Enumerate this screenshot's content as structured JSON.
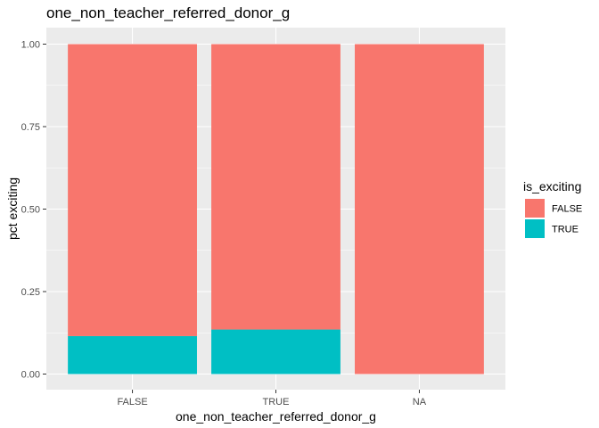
{
  "chart_data": {
    "type": "bar",
    "stacked": true,
    "title": "one_non_teacher_referred_donor_g",
    "xlabel": "one_non_teacher_referred_donor_g",
    "ylabel": "pct exciting",
    "categories": [
      "FALSE",
      "TRUE",
      "NA"
    ],
    "ylim": [
      0,
      1
    ],
    "yticks": [
      0,
      0.25,
      0.5,
      0.75,
      1
    ],
    "ytick_labels": [
      "0.00",
      "0.25",
      "0.50",
      "0.75",
      "1.00"
    ],
    "grid": true,
    "legend": {
      "title": "is_exciting",
      "placement": "right"
    },
    "series": [
      {
        "name": "FALSE",
        "color": "#F8766D",
        "values": [
          0.885,
          0.865,
          1.0
        ]
      },
      {
        "name": "TRUE",
        "color": "#00BFC4",
        "values": [
          0.115,
          0.135,
          0.0
        ]
      }
    ],
    "panel_background": "#EBEBEB",
    "grid_color": "#FFFFFF"
  }
}
